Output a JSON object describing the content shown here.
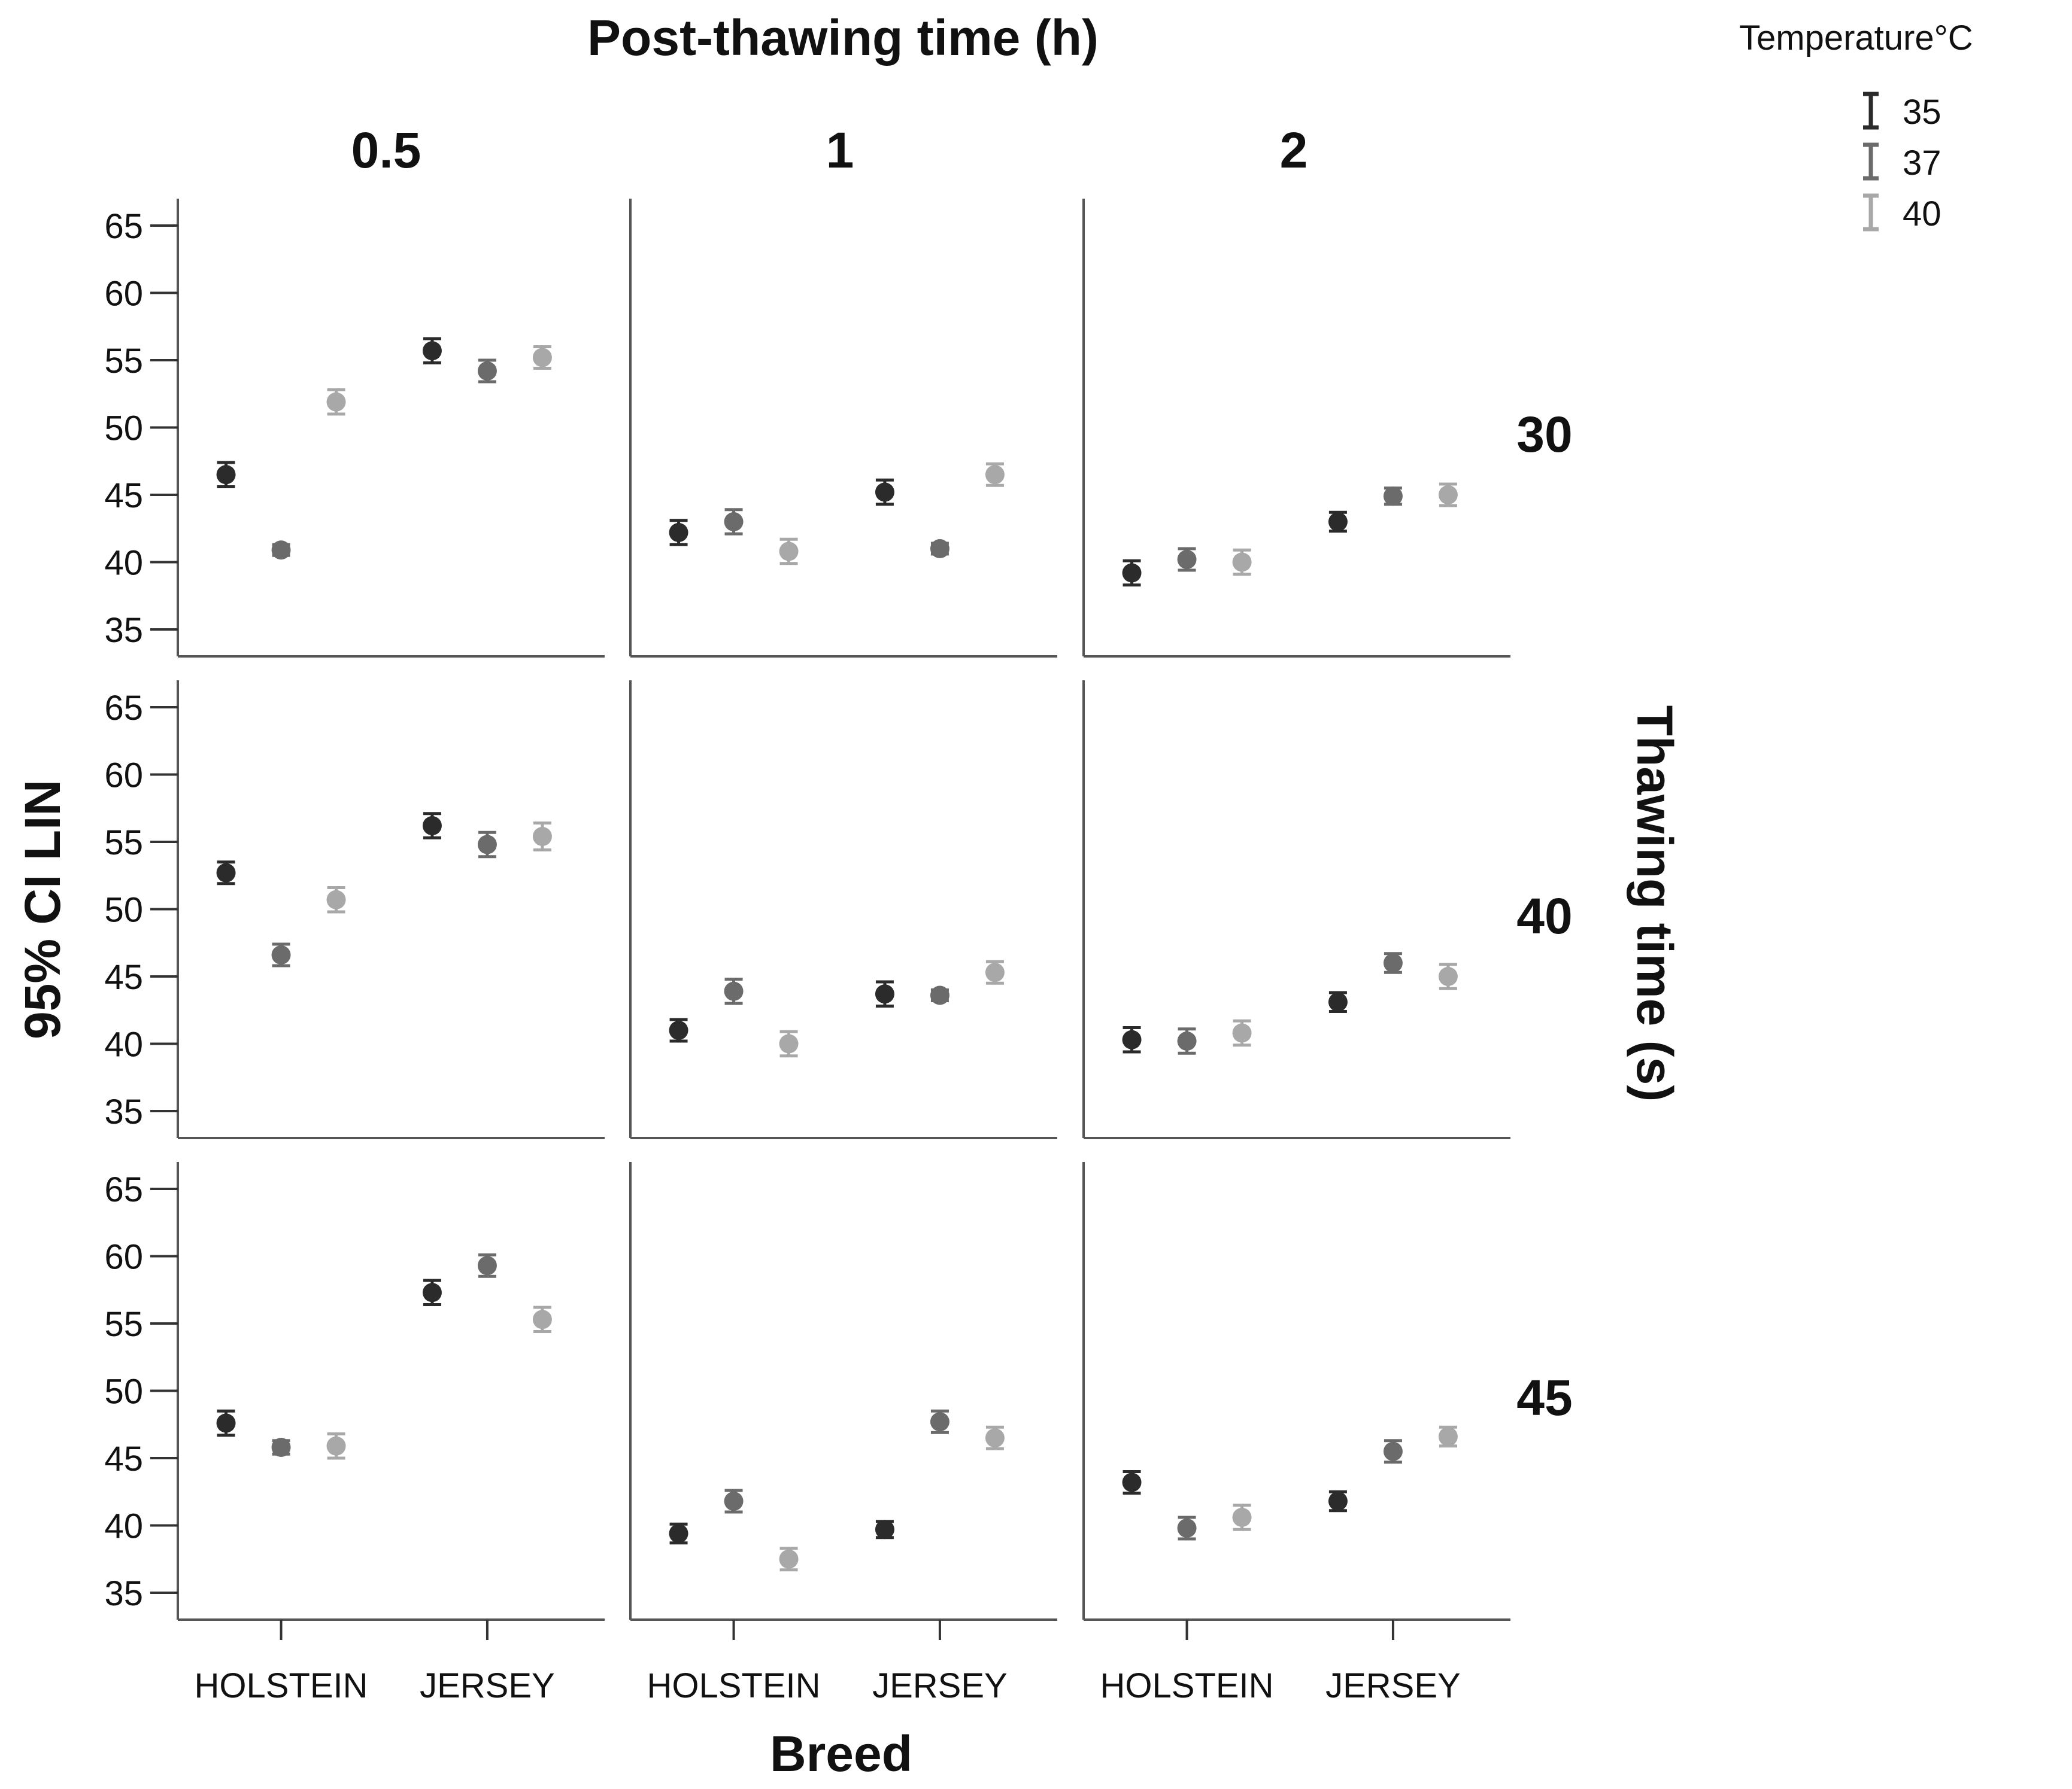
{
  "chart_data": {
    "type": "scatter",
    "subtype": "faceted-error-bar-dot-plot",
    "title": "Post-thawing time (h)",
    "xlabel": "Breed",
    "ylabel": "95% CI LIN",
    "row_title": "Thawing time (s)",
    "column_facets": [
      "0.5",
      "1",
      "2"
    ],
    "row_facets": [
      "30",
      "40",
      "45"
    ],
    "categories": [
      "HOLSTEIN",
      "JERSEY"
    ],
    "ylim": [
      33,
      67
    ],
    "yticks": [
      35,
      40,
      45,
      50,
      55,
      60,
      65
    ],
    "legend": {
      "title": "Temperature°C",
      "position": "top-right",
      "items": [
        {
          "label": "35",
          "color": "#2b2b2b"
        },
        {
          "label": "37",
          "color": "#6b6b6b"
        },
        {
          "label": "40",
          "color": "#a8a8a8"
        }
      ]
    },
    "series": [
      {
        "name": "35",
        "color": "#2b2b2b",
        "panels": [
          {
            "row": "30",
            "col": "0.5",
            "values": [
              {
                "mean": 46.5,
                "err": 0.9
              },
              {
                "mean": 55.7,
                "err": 0.9
              }
            ]
          },
          {
            "row": "30",
            "col": "1",
            "values": [
              {
                "mean": 42.2,
                "err": 0.9
              },
              {
                "mean": 45.2,
                "err": 0.9
              }
            ]
          },
          {
            "row": "30",
            "col": "2",
            "values": [
              {
                "mean": 39.2,
                "err": 0.9
              },
              {
                "mean": 43.0,
                "err": 0.7
              }
            ]
          },
          {
            "row": "40",
            "col": "0.5",
            "values": [
              {
                "mean": 52.7,
                "err": 0.8
              },
              {
                "mean": 56.2,
                "err": 0.9
              }
            ]
          },
          {
            "row": "40",
            "col": "1",
            "values": [
              {
                "mean": 41.0,
                "err": 0.8
              },
              {
                "mean": 43.7,
                "err": 0.9
              }
            ]
          },
          {
            "row": "40",
            "col": "2",
            "values": [
              {
                "mean": 40.3,
                "err": 0.9
              },
              {
                "mean": 43.1,
                "err": 0.7
              }
            ]
          },
          {
            "row": "45",
            "col": "0.5",
            "values": [
              {
                "mean": 47.6,
                "err": 0.9
              },
              {
                "mean": 57.3,
                "err": 0.9
              }
            ]
          },
          {
            "row": "45",
            "col": "1",
            "values": [
              {
                "mean": 39.4,
                "err": 0.7
              },
              {
                "mean": 39.7,
                "err": 0.6
              }
            ]
          },
          {
            "row": "45",
            "col": "2",
            "values": [
              {
                "mean": 43.2,
                "err": 0.8
              },
              {
                "mean": 41.8,
                "err": 0.7
              }
            ]
          }
        ]
      },
      {
        "name": "37",
        "color": "#6b6b6b",
        "panels": [
          {
            "row": "30",
            "col": "0.5",
            "values": [
              {
                "mean": 40.9,
                "err": 0.4
              },
              {
                "mean": 54.2,
                "err": 0.8
              }
            ]
          },
          {
            "row": "30",
            "col": "1",
            "values": [
              {
                "mean": 43.0,
                "err": 0.9
              },
              {
                "mean": 41.0,
                "err": 0.4
              }
            ]
          },
          {
            "row": "30",
            "col": "2",
            "values": [
              {
                "mean": 40.2,
                "err": 0.8
              },
              {
                "mean": 44.9,
                "err": 0.6
              }
            ]
          },
          {
            "row": "40",
            "col": "0.5",
            "values": [
              {
                "mean": 46.6,
                "err": 0.8
              },
              {
                "mean": 54.8,
                "err": 0.9
              }
            ]
          },
          {
            "row": "40",
            "col": "1",
            "values": [
              {
                "mean": 43.9,
                "err": 0.9
              },
              {
                "mean": 43.6,
                "err": 0.4
              }
            ]
          },
          {
            "row": "40",
            "col": "2",
            "values": [
              {
                "mean": 40.2,
                "err": 0.9
              },
              {
                "mean": 46.0,
                "err": 0.7
              }
            ]
          },
          {
            "row": "45",
            "col": "0.5",
            "values": [
              {
                "mean": 45.8,
                "err": 0.5
              },
              {
                "mean": 59.3,
                "err": 0.8
              }
            ]
          },
          {
            "row": "45",
            "col": "1",
            "values": [
              {
                "mean": 41.8,
                "err": 0.8
              },
              {
                "mean": 47.7,
                "err": 0.8
              }
            ]
          },
          {
            "row": "45",
            "col": "2",
            "values": [
              {
                "mean": 39.8,
                "err": 0.8
              },
              {
                "mean": 45.5,
                "err": 0.8
              }
            ]
          }
        ]
      },
      {
        "name": "40",
        "color": "#a8a8a8",
        "panels": [
          {
            "row": "30",
            "col": "0.5",
            "values": [
              {
                "mean": 51.9,
                "err": 0.9
              },
              {
                "mean": 55.2,
                "err": 0.8
              }
            ]
          },
          {
            "row": "30",
            "col": "1",
            "values": [
              {
                "mean": 40.8,
                "err": 0.9
              },
              {
                "mean": 46.5,
                "err": 0.8
              }
            ]
          },
          {
            "row": "30",
            "col": "2",
            "values": [
              {
                "mean": 40.0,
                "err": 0.9
              },
              {
                "mean": 45.0,
                "err": 0.8
              }
            ]
          },
          {
            "row": "40",
            "col": "0.5",
            "values": [
              {
                "mean": 50.7,
                "err": 0.9
              },
              {
                "mean": 55.4,
                "err": 1.0
              }
            ]
          },
          {
            "row": "40",
            "col": "1",
            "values": [
              {
                "mean": 40.0,
                "err": 0.9
              },
              {
                "mean": 45.3,
                "err": 0.8
              }
            ]
          },
          {
            "row": "40",
            "col": "2",
            "values": [
              {
                "mean": 40.8,
                "err": 0.9
              },
              {
                "mean": 45.0,
                "err": 0.9
              }
            ]
          },
          {
            "row": "45",
            "col": "0.5",
            "values": [
              {
                "mean": 45.9,
                "err": 0.9
              },
              {
                "mean": 55.3,
                "err": 0.9
              }
            ]
          },
          {
            "row": "45",
            "col": "1",
            "values": [
              {
                "mean": 37.5,
                "err": 0.8
              },
              {
                "mean": 46.5,
                "err": 0.8
              }
            ]
          },
          {
            "row": "45",
            "col": "2",
            "values": [
              {
                "mean": 40.6,
                "err": 0.9
              },
              {
                "mean": 46.6,
                "err": 0.7
              }
            ]
          }
        ]
      }
    ]
  }
}
